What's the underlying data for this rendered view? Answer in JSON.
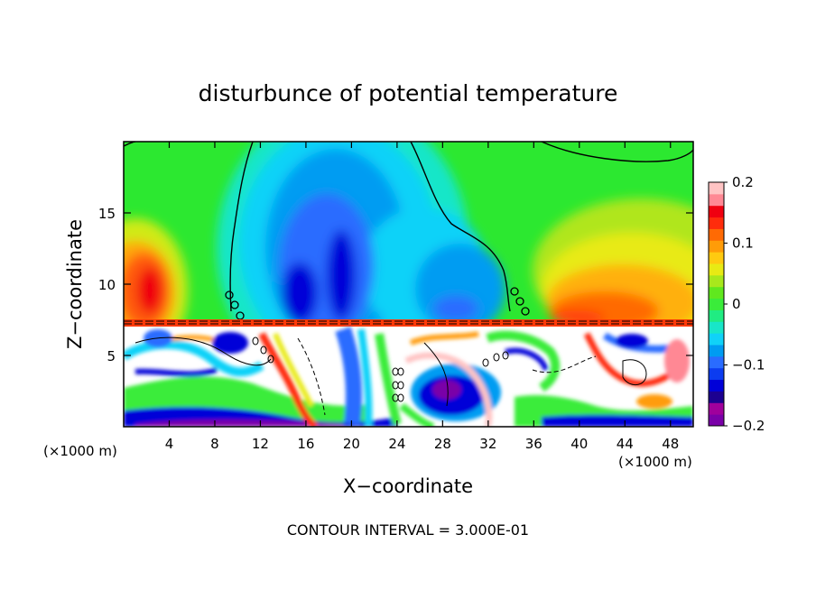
{
  "chart_data": {
    "type": "heatmap",
    "title": "disturbunce of potential temperature",
    "xlabel": "X−coordinate",
    "ylabel": "Z−coordinate",
    "x_unit_left": "(×1000 m)",
    "x_unit_right": "(×1000 m)",
    "xlim": [
      0,
      50
    ],
    "ylim": [
      0,
      20
    ],
    "x_ticks": [
      4,
      8,
      12,
      16,
      20,
      24,
      28,
      32,
      36,
      40,
      44,
      48
    ],
    "x_tick_labels": [
      "4",
      "8",
      "12",
      "16",
      "20",
      "24",
      "28",
      "32",
      "36",
      "40",
      "44",
      "48"
    ],
    "y_ticks": [
      5,
      10,
      15
    ],
    "y_tick_labels": [
      "5",
      "10",
      "15"
    ],
    "colorbar": {
      "range": [
        -0.2,
        0.2
      ],
      "ticks": [
        0.2,
        0.1,
        0,
        -0.1,
        -0.2
      ],
      "tick_labels": [
        "0.2",
        "0.1",
        "0",
        "−0.1",
        "−0.2"
      ],
      "colors": [
        "#7a00a8",
        "#a0009c",
        "#1c0090",
        "#0000d8",
        "#0c3cf0",
        "#2a6cff",
        "#009cf2",
        "#10d2f8",
        "#18e6c8",
        "#20ec82",
        "#3aec3a",
        "#60e81e",
        "#a8e81c",
        "#e8ea14",
        "#ffca10",
        "#ff9c08",
        "#ff6a04",
        "#ff2c0c",
        "#f00010",
        "#ff8894",
        "#ffc4c4"
      ]
    },
    "annotation": "CONTOUR INTERVAL = 3.000E-01"
  }
}
